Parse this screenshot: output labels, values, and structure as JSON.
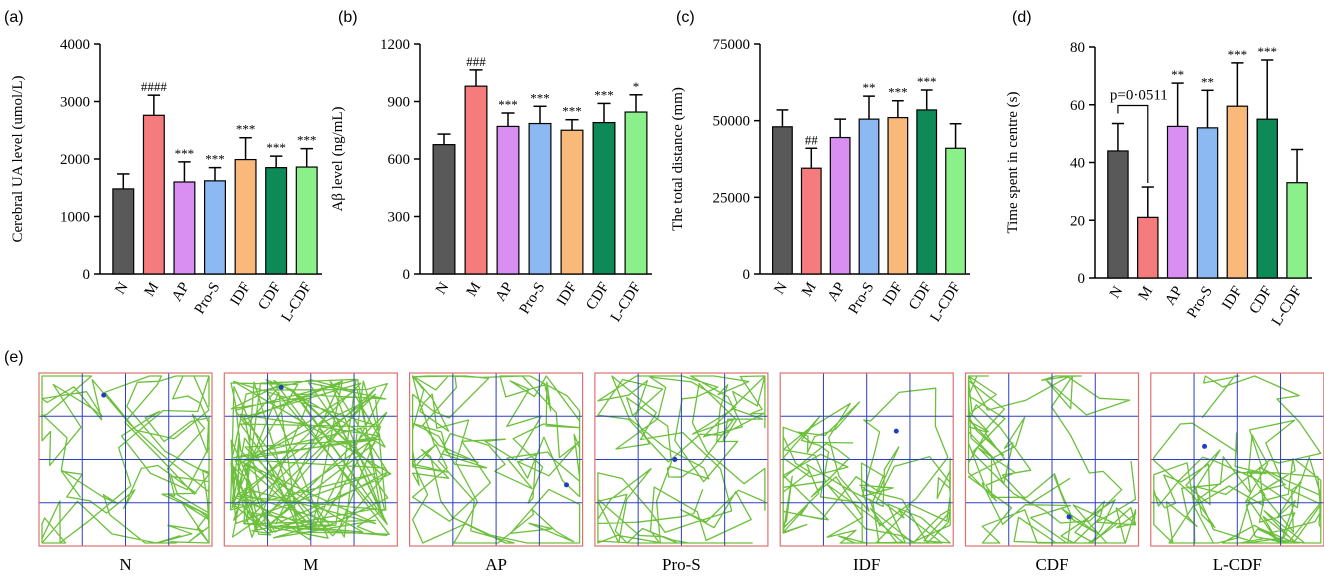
{
  "chart_data": [
    {
      "type": "bar",
      "panel_label": "(a)",
      "ylabel": "Cerebral UA level (umol/L)",
      "categories": [
        "N",
        "M",
        "AP",
        "Pro-S",
        "IDF",
        "CDF",
        "L-CDF"
      ],
      "colors": [
        "#595959",
        "#f47c7c",
        "#d98ef2",
        "#8db9f2",
        "#f8b97b",
        "#0e8a58",
        "#8cf08a"
      ],
      "values": [
        1480,
        2760,
        1600,
        1620,
        1990,
        1850,
        1860
      ],
      "errors": [
        260,
        350,
        350,
        230,
        380,
        200,
        320
      ],
      "annotations": [
        null,
        "####",
        "***",
        "***",
        "***",
        "***",
        "***"
      ],
      "ylim": [
        0,
        4000
      ],
      "yticks": [
        0,
        1000,
        2000,
        3000,
        4000
      ]
    },
    {
      "type": "bar",
      "panel_label": "(b)",
      "ylabel": "Aβ level (ng/mL)",
      "categories": [
        "N",
        "M",
        "AP",
        "Pro-S",
        "IDF",
        "CDF",
        "L-CDF"
      ],
      "colors": [
        "#595959",
        "#f47c7c",
        "#d98ef2",
        "#8db9f2",
        "#f8b97b",
        "#0e8a58",
        "#8cf08a"
      ],
      "values": [
        675,
        980,
        770,
        785,
        750,
        790,
        845
      ],
      "errors": [
        55,
        85,
        70,
        90,
        55,
        100,
        90
      ],
      "annotations": [
        null,
        "###",
        "***",
        "***",
        "***",
        "***",
        "*"
      ],
      "ylim": [
        0,
        1200
      ],
      "yticks": [
        0,
        300,
        600,
        900,
        1200
      ]
    },
    {
      "type": "bar",
      "panel_label": "(c)",
      "ylabel": "The total distance (mm)",
      "categories": [
        "N",
        "M",
        "AP",
        "Pro-S",
        "IDF",
        "CDF",
        "L-CDF"
      ],
      "colors": [
        "#595959",
        "#f47c7c",
        "#d98ef2",
        "#8db9f2",
        "#f8b97b",
        "#0e8a58",
        "#8cf08a"
      ],
      "values": [
        48000,
        34500,
        44500,
        50500,
        51000,
        53500,
        41000
      ],
      "errors": [
        5500,
        6500,
        6000,
        7500,
        5500,
        6500,
        8000
      ],
      "annotations": [
        null,
        "##",
        null,
        "**",
        "***",
        "***",
        null
      ],
      "ylim": [
        0,
        75000
      ],
      "yticks": [
        0,
        25000,
        50000,
        75000
      ]
    },
    {
      "type": "bar",
      "panel_label": "(d)",
      "ylabel": "Time spent in centre (s)",
      "categories": [
        "N",
        "M",
        "AP",
        "Pro-S",
        "IDF",
        "CDF",
        "L-CDF"
      ],
      "colors": [
        "#595959",
        "#f47c7c",
        "#d98ef2",
        "#8db9f2",
        "#f8b97b",
        "#0e8a58",
        "#8cf08a"
      ],
      "values": [
        44,
        21,
        52.5,
        52,
        59.5,
        55,
        33
      ],
      "errors": [
        9.5,
        10.5,
        15,
        13,
        15,
        20.5,
        11.5
      ],
      "annotations": [
        null,
        null,
        "**",
        "**",
        "***",
        "***",
        null
      ],
      "bracket_label": "p=0·0511",
      "ylim": [
        0,
        80
      ],
      "yticks": [
        0,
        20,
        40,
        60,
        80
      ]
    }
  ],
  "tracks": {
    "panel_label": "(e)",
    "labels": [
      "N",
      "M",
      "AP",
      "Pro-S",
      "IDF",
      "CDF",
      "L-CDF"
    ]
  }
}
